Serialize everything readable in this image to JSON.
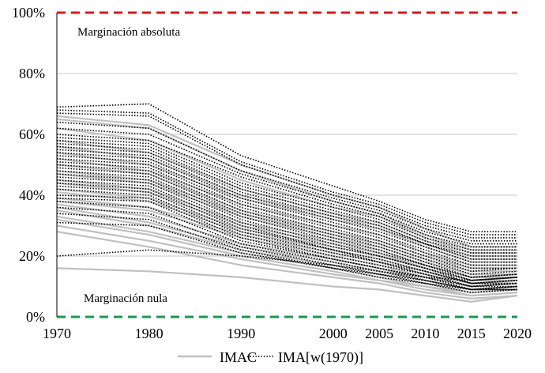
{
  "chart_data": {
    "type": "line",
    "x_ticks": [
      1970,
      1980,
      1990,
      2000,
      2005,
      2010,
      2015,
      2020
    ],
    "y_ticks": [
      "0%",
      "20%",
      "40%",
      "60%",
      "80%",
      "100%"
    ],
    "y_tick_values": [
      0,
      20,
      40,
      60,
      80,
      100
    ],
    "xlim": [
      1970,
      2020
    ],
    "ylim": [
      0,
      100
    ],
    "grid": true,
    "legend_position": "bottom",
    "reference_lines": [
      {
        "value": 100,
        "label": "Marginación absoluta",
        "color": "#d7191c"
      },
      {
        "value": 0,
        "label": "Marginación nula",
        "color": "#1a9850"
      }
    ],
    "legend": [
      "IMAC",
      "IMA[w(1970)]"
    ],
    "series": [
      {
        "name": "IMAC",
        "style": "solid",
        "color": "#c0c0c0",
        "x": [
          1970,
          1980,
          1990,
          2000,
          2005,
          2010,
          2015,
          2020
        ],
        "values_list": [
          [
            66,
            63,
            50,
            40,
            36,
            29,
            23,
            23
          ],
          [
            65,
            62,
            48,
            38,
            34,
            27,
            22,
            22
          ],
          [
            62,
            58,
            45,
            36,
            33,
            26,
            21,
            21
          ],
          [
            58,
            54,
            42,
            34,
            31,
            25,
            20,
            20
          ],
          [
            56,
            52,
            40,
            33,
            30,
            24,
            19,
            19
          ],
          [
            54,
            50,
            39,
            32,
            29,
            23,
            18,
            18
          ],
          [
            52,
            48,
            37,
            30,
            27,
            21,
            17,
            17
          ],
          [
            50,
            47,
            35,
            28,
            25,
            20,
            16,
            16
          ],
          [
            48,
            45,
            34,
            27,
            24,
            19,
            15,
            15
          ],
          [
            47,
            44,
            33,
            26,
            23,
            18,
            14,
            14
          ],
          [
            45,
            42,
            31,
            25,
            22,
            17,
            13,
            13
          ],
          [
            44,
            41,
            30,
            24,
            21,
            16,
            12,
            13
          ],
          [
            42,
            39,
            29,
            23,
            20,
            16,
            12,
            12
          ],
          [
            41,
            38,
            28,
            22,
            19,
            15,
            11,
            12
          ],
          [
            39,
            36,
            27,
            21,
            18,
            14,
            11,
            11
          ],
          [
            38,
            35,
            26,
            20,
            17,
            13,
            10,
            11
          ],
          [
            37,
            33,
            24,
            19,
            16,
            12,
            9,
            10
          ],
          [
            36,
            31,
            23,
            18,
            15,
            12,
            9,
            10
          ],
          [
            35,
            30,
            22,
            17,
            14,
            11,
            8,
            9
          ],
          [
            33,
            28,
            21,
            16,
            13,
            10,
            8,
            9
          ],
          [
            32,
            27,
            20,
            15,
            12,
            10,
            7,
            8
          ],
          [
            30,
            25,
            19,
            14,
            12,
            9,
            7,
            8
          ],
          [
            28,
            23,
            17,
            13,
            11,
            8,
            6,
            7
          ],
          [
            16,
            15,
            13,
            10,
            9,
            7,
            5,
            7
          ]
        ]
      },
      {
        "name": "IMA[w(1970)]",
        "style": "dotted",
        "color": "#000000",
        "x": [
          1970,
          1980,
          1990,
          2000,
          2005,
          2010,
          2015,
          2020
        ],
        "values_list": [
          [
            69,
            70,
            53,
            43,
            38,
            32,
            28,
            28
          ],
          [
            68,
            67,
            51,
            41,
            37,
            31,
            27,
            27
          ],
          [
            67,
            66,
            50,
            40,
            36,
            30,
            26,
            26
          ],
          [
            64,
            62,
            48,
            39,
            35,
            29,
            25,
            25
          ],
          [
            62,
            60,
            47,
            38,
            34,
            28,
            24,
            24
          ],
          [
            60,
            58,
            46,
            37,
            33,
            27,
            23,
            23
          ],
          [
            59,
            57,
            44,
            36,
            32,
            26,
            22,
            22
          ],
          [
            58,
            56,
            43,
            35,
            31,
            25,
            21,
            21
          ],
          [
            57,
            55,
            42,
            34,
            30,
            24,
            20,
            20
          ],
          [
            56,
            54,
            41,
            33,
            29,
            24,
            19,
            19
          ],
          [
            55,
            53,
            40,
            32,
            28,
            23,
            18,
            18
          ],
          [
            54,
            52,
            39,
            31,
            27,
            22,
            17,
            17
          ],
          [
            53,
            51,
            38,
            30,
            26,
            21,
            16,
            16
          ],
          [
            52,
            50,
            37,
            29,
            25,
            20,
            15,
            16
          ],
          [
            51,
            49,
            36,
            28,
            24,
            19,
            14,
            15
          ],
          [
            50,
            48,
            35,
            27,
            23,
            18,
            13,
            14
          ],
          [
            49,
            47,
            34,
            26,
            22,
            17,
            13,
            14
          ],
          [
            48,
            46,
            33,
            25,
            21,
            17,
            12,
            13
          ],
          [
            47,
            45,
            32,
            24,
            20,
            16,
            12,
            13
          ],
          [
            46,
            44,
            31,
            23,
            20,
            16,
            11,
            12
          ],
          [
            45,
            43,
            30,
            22,
            19,
            15,
            11,
            12
          ],
          [
            44,
            42,
            29,
            22,
            18,
            15,
            11,
            11
          ],
          [
            43,
            41,
            28,
            21,
            18,
            14,
            10,
            11
          ],
          [
            42,
            40,
            27,
            20,
            17,
            14,
            10,
            11
          ],
          [
            40,
            39,
            26,
            19,
            16,
            13,
            10,
            10
          ],
          [
            39,
            38,
            25,
            19,
            16,
            13,
            9,
            10
          ],
          [
            38,
            36,
            24,
            18,
            15,
            12,
            9,
            10
          ],
          [
            36,
            34,
            23,
            17,
            14,
            12,
            9,
            9
          ],
          [
            34,
            32,
            22,
            16,
            14,
            11,
            9,
            9
          ],
          [
            31,
            30,
            21,
            16,
            13,
            11,
            8,
            9
          ],
          [
            20,
            22,
            20,
            17,
            15,
            13,
            12,
            13
          ]
        ]
      }
    ]
  }
}
